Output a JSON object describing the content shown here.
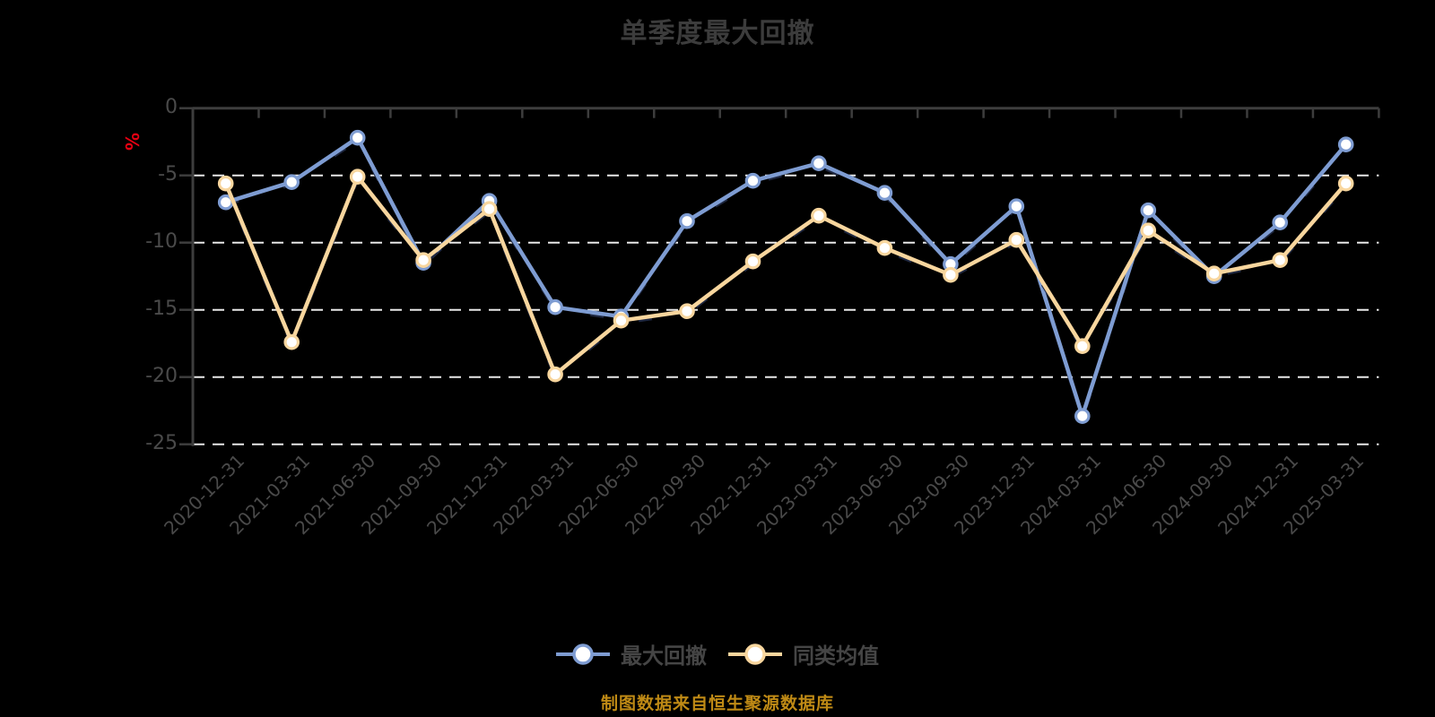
{
  "title": "单季度最大回撤",
  "caption": "制图数据来自恒生聚源数据库",
  "colors": {
    "background": "#000000",
    "title_text": "#3c3c3c",
    "axis_line": "#3d3d3d",
    "tick_label": "#4a4a4a",
    "grid_line": "#e8e8e8",
    "y_axis_name": "#e60012",
    "series_drawdown": "#7e9cd2",
    "series_average": "#f8d69e",
    "marker_fill": "#ffffff",
    "dash_shadow": "#1e2740",
    "legend_text": "#454545",
    "caption_text": "#bf8a15"
  },
  "chart_data": {
    "type": "line",
    "title": "单季度最大回撤",
    "xlabel": "",
    "ylabel": "%",
    "ylim": [
      -25,
      0
    ],
    "yticks": [
      0,
      -5,
      -10,
      -15,
      -20,
      -25
    ],
    "grid": "horizontal dashed white lines at each y tick below 0",
    "legend_position": "bottom center",
    "categories": [
      "2020-12-31",
      "2021-03-31",
      "2021-06-30",
      "2021-09-30",
      "2021-12-31",
      "2022-03-31",
      "2022-06-30",
      "2022-09-30",
      "2022-12-31",
      "2023-03-31",
      "2023-06-30",
      "2023-09-30",
      "2023-12-31",
      "2024-03-31",
      "2024-06-30",
      "2024-09-30",
      "2024-12-31",
      "2025-03-31"
    ],
    "series": [
      {
        "name": "最大回撤",
        "color": "#7e9cd2",
        "values": [
          -7.0,
          -5.5,
          -2.2,
          -11.5,
          -6.9,
          -14.8,
          -15.5,
          -8.4,
          -5.4,
          -4.1,
          -6.3,
          -11.6,
          -7.3,
          -22.9,
          -7.6,
          -12.5,
          -8.5,
          -2.7
        ]
      },
      {
        "name": "同类均值",
        "color": "#f8d69e",
        "values": [
          -5.6,
          -17.4,
          -5.1,
          -11.3,
          -7.5,
          -19.8,
          -15.8,
          -15.1,
          -11.4,
          -8.0,
          -10.4,
          -12.4,
          -9.8,
          -17.7,
          -9.1,
          -12.3,
          -11.3,
          -5.6
        ]
      }
    ]
  }
}
